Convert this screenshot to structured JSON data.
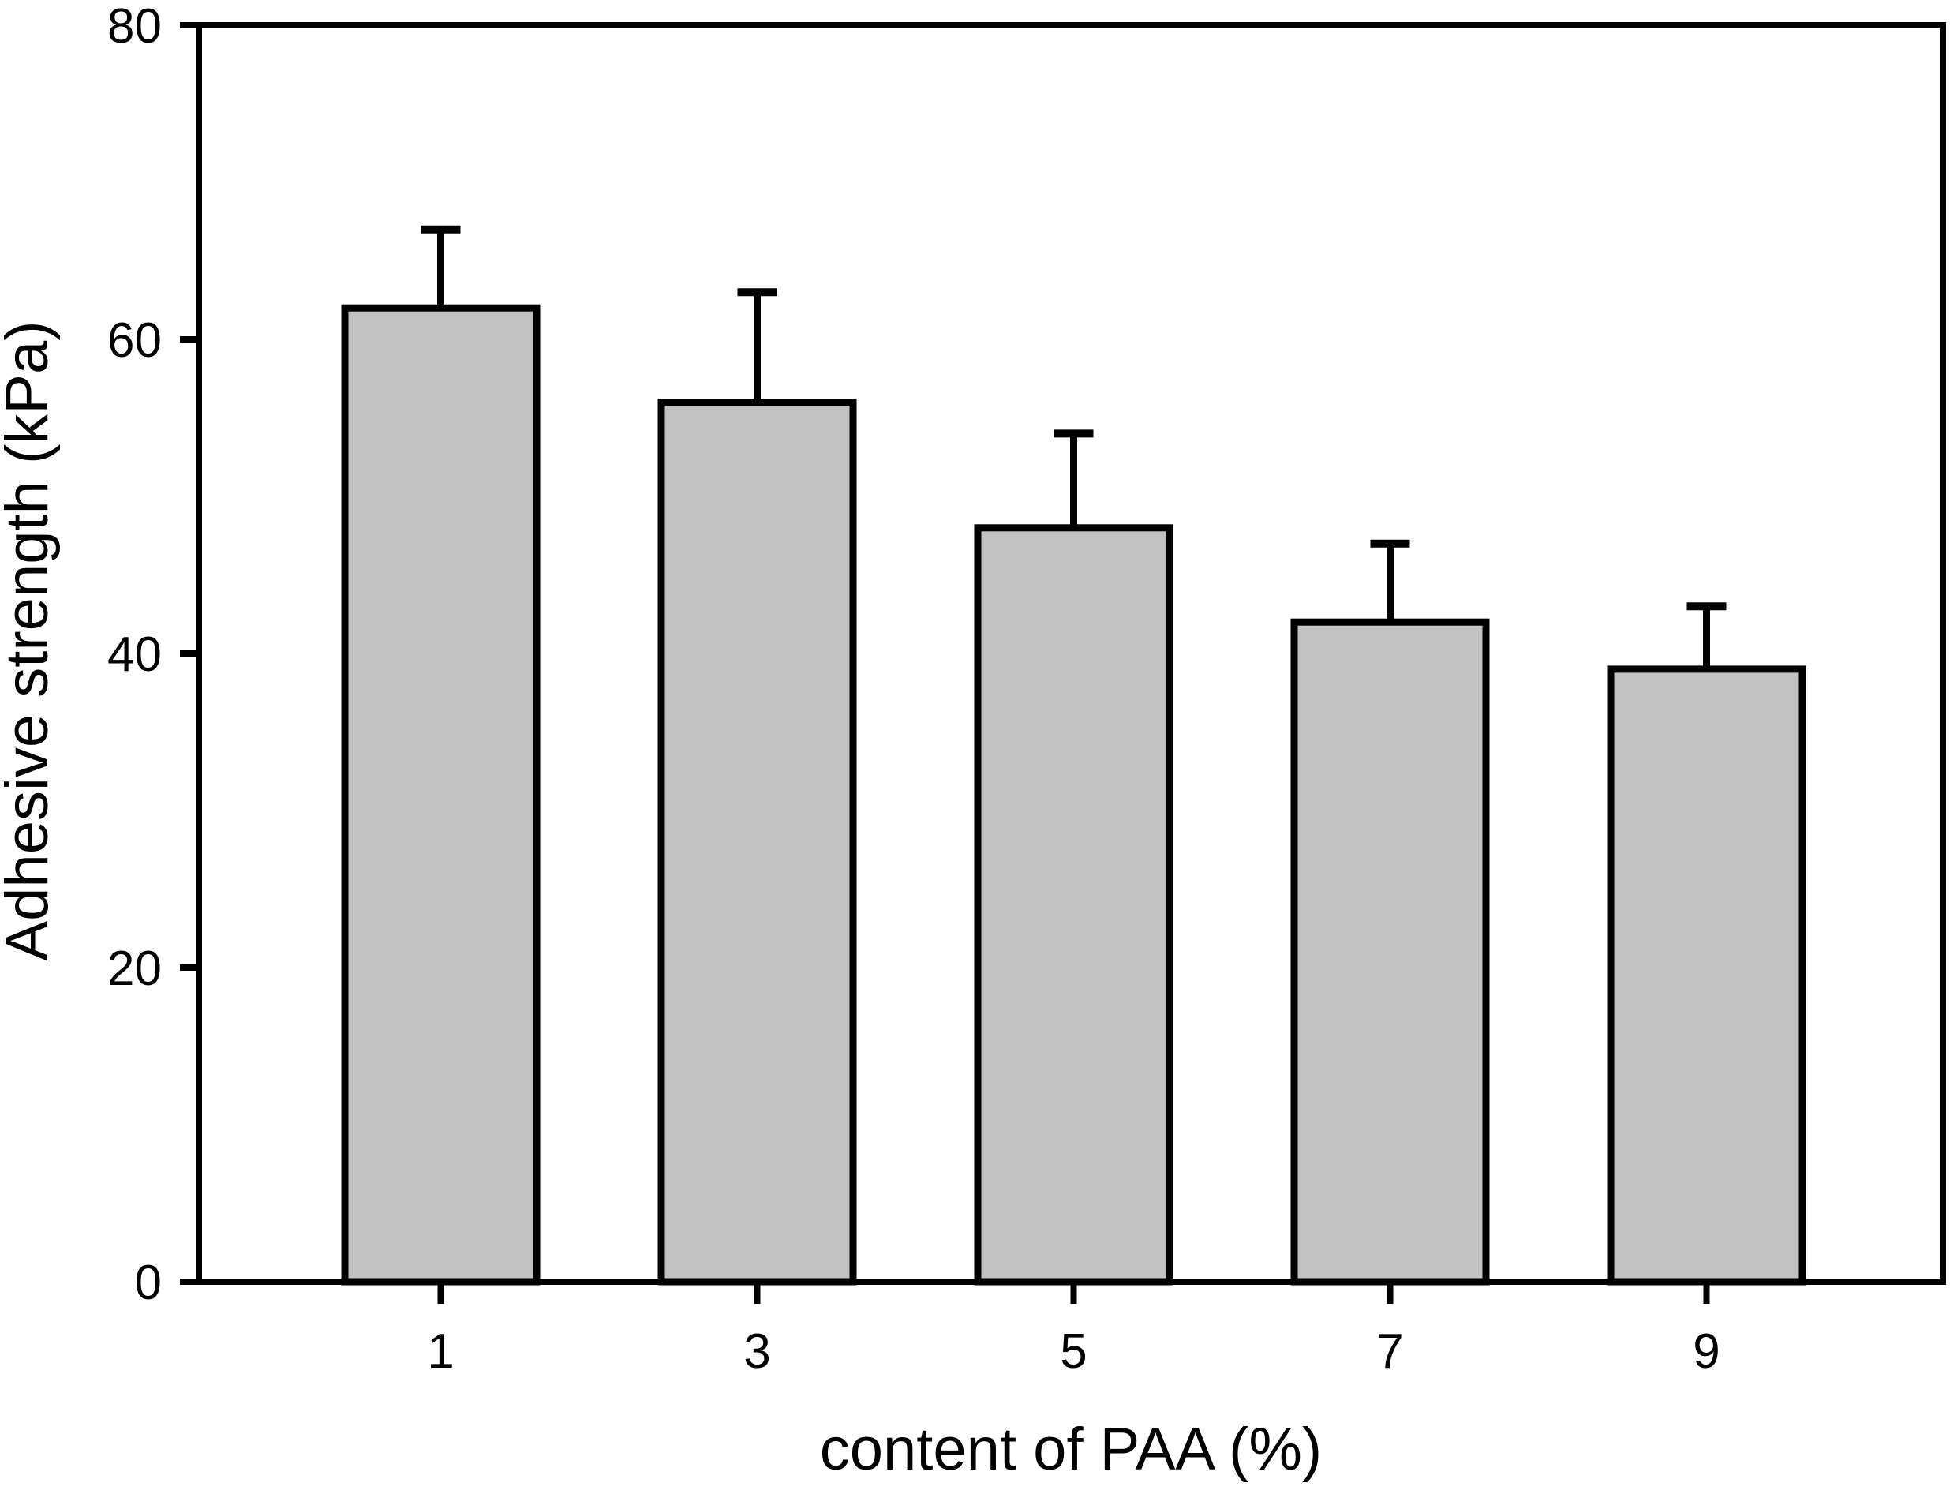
{
  "chart_data": {
    "type": "bar",
    "xlabel": "content of PAA (%)",
    "ylabel": "Adhesive strength (kPa)",
    "categories": [
      "1",
      "3",
      "5",
      "7",
      "9"
    ],
    "values": [
      62,
      56,
      48,
      42,
      39
    ],
    "errors_plus": [
      5,
      7,
      6,
      5,
      4
    ],
    "error_caps_at": [
      67,
      63,
      54,
      47,
      43
    ],
    "yticks": [
      0,
      20,
      40,
      60,
      80
    ],
    "ylim": [
      0,
      80
    ],
    "grid": false,
    "legend_position": "none",
    "colors": {
      "bar_fill": "#c2c2c2",
      "bar_edge": "#000000",
      "axis": "#000000",
      "background": "#ffffff",
      "text": "#000000"
    }
  }
}
